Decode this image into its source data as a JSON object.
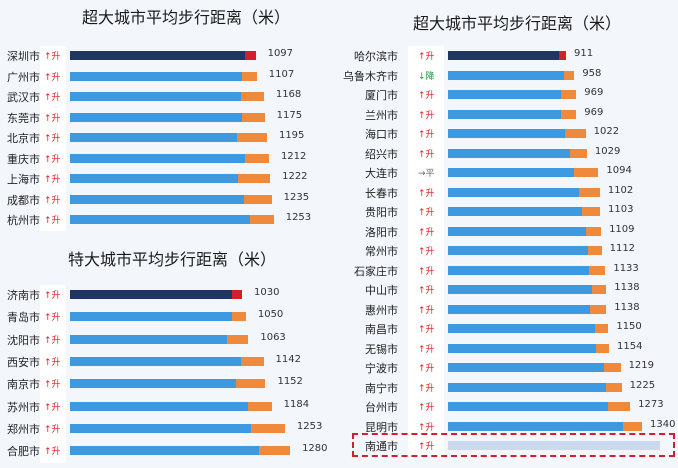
{
  "colors": {
    "main": "#3d9ae0",
    "increase": "#ef8a3c",
    "top_main": "#1f3566",
    "top_increase": "#d41e2a"
  },
  "chart_data": [
    {
      "type": "bar",
      "title": "超大城市平均步行距离（米）",
      "categories": [
        "深圳市",
        "广州市",
        "武汉市",
        "东莞市",
        "北京市",
        "重庆市",
        "上海市",
        "成都市",
        "杭州市"
      ],
      "trend_labels": [
        "↑升",
        "↑升",
        "↑升",
        "↑升",
        "↑升",
        "↑升",
        "↑升",
        "↑升",
        "↑升"
      ],
      "trends": [
        "up",
        "up",
        "up",
        "up",
        "up",
        "up",
        "up",
        "up",
        "up"
      ],
      "values": [
        1097,
        1107,
        1168,
        1175,
        1195,
        1212,
        1222,
        1235,
        1253
      ]
    },
    {
      "type": "bar",
      "title": "特大城市平均步行距离（米）",
      "categories": [
        "济南市",
        "青岛市",
        "沈阳市",
        "西安市",
        "南京市",
        "苏州市",
        "郑州市",
        "合肥市"
      ],
      "trend_labels": [
        "↑升",
        "↑升",
        "↑升",
        "↑升",
        "↑升",
        "↑升",
        "↑升",
        "↑升"
      ],
      "trends": [
        "up",
        "up",
        "up",
        "up",
        "up",
        "up",
        "up",
        "up"
      ],
      "values": [
        1030,
        1050,
        1063,
        1142,
        1152,
        1184,
        1253,
        1280
      ]
    },
    {
      "type": "bar",
      "title": "超大城市平均步行距离（米）",
      "categories": [
        "哈尔滨市",
        "乌鲁木齐市",
        "厦门市",
        "兰州市",
        "海口市",
        "绍兴市",
        "大连市",
        "长春市",
        "贵阳市",
        "洛阳市",
        "常州市",
        "石家庄市",
        "中山市",
        "惠州市",
        "南昌市",
        "无锡市",
        "宁波市",
        "南宁市",
        "台州市",
        "昆明市",
        "南通市"
      ],
      "trend_labels": [
        "↑升",
        "↓降",
        "↑升",
        "↑升",
        "↑升",
        "↑升",
        "→平",
        "↑升",
        "↑升",
        "↑升",
        "↑升",
        "↑升",
        "↑升",
        "↑升",
        "↑升",
        "↑升",
        "↑升",
        "↑升",
        "↑升",
        "↑升",
        "↑升"
      ],
      "trends": [
        "up",
        "down",
        "up",
        "up",
        "up",
        "up",
        "flat",
        "up",
        "up",
        "up",
        "up",
        "up",
        "up",
        "up",
        "up",
        "up",
        "up",
        "up",
        "up",
        "up",
        "up"
      ],
      "values": [
        911,
        958,
        969,
        969,
        1022,
        1029,
        1094,
        1102,
        1103,
        1109,
        1112,
        1133,
        1138,
        1138,
        1150,
        1154,
        1219,
        1225,
        1273,
        1340,
        null
      ]
    }
  ]
}
